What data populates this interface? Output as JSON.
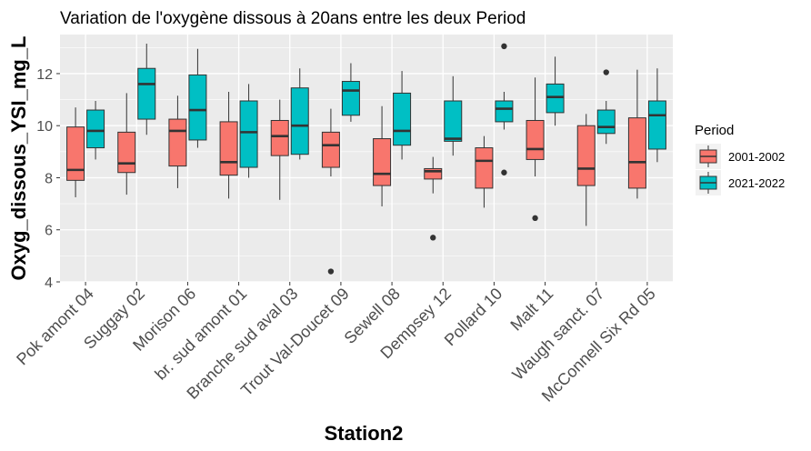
{
  "chart_data": {
    "type": "box",
    "title": "Variation  de l'oxygène dissous à 20ans entre les deux Period",
    "xlabel": "Station2",
    "ylabel": "Oxyg_dissous_YSI_mg_L",
    "ylim": [
      4,
      13.5
    ],
    "yticks": [
      4,
      6,
      8,
      10,
      12
    ],
    "grid": true,
    "legend": {
      "title": "Period",
      "position": "right"
    },
    "categories": [
      "Pok amont 04",
      "Suggay 02",
      "Morison 06",
      "br. sud amont 01",
      "Branche sud aval 03",
      "Trout Val-Doucet 09",
      "Sewell 08",
      "Dempsey 12",
      "Pollard 10",
      "Malt 11",
      "Waugh sanct. 07",
      "McConnell Six Rd 05"
    ],
    "series": [
      {
        "name": "2001-2002",
        "color": "#F8766D",
        "boxes": [
          {
            "min": 7.25,
            "q1": 7.9,
            "median": 8.3,
            "q3": 9.95,
            "max": 10.7,
            "outliers": []
          },
          {
            "min": 7.35,
            "q1": 8.2,
            "median": 8.55,
            "q3": 9.75,
            "max": 11.25,
            "outliers": []
          },
          {
            "min": 7.6,
            "q1": 8.45,
            "median": 9.8,
            "q3": 10.25,
            "max": 11.15,
            "outliers": []
          },
          {
            "min": 7.2,
            "q1": 8.1,
            "median": 8.6,
            "q3": 10.15,
            "max": 11.3,
            "outliers": []
          },
          {
            "min": 7.15,
            "q1": 8.85,
            "median": 9.6,
            "q3": 10.2,
            "max": 11.0,
            "outliers": []
          },
          {
            "min": 8.05,
            "q1": 8.4,
            "median": 9.25,
            "q3": 9.75,
            "max": 10.65,
            "outliers": [
              4.4
            ]
          },
          {
            "min": 6.9,
            "q1": 7.7,
            "median": 8.15,
            "q3": 9.5,
            "max": 10.75,
            "outliers": []
          },
          {
            "min": 7.4,
            "q1": 7.95,
            "median": 8.25,
            "q3": 8.35,
            "max": 8.8,
            "outliers": [
              5.7
            ]
          },
          {
            "min": 6.85,
            "q1": 7.6,
            "median": 8.65,
            "q3": 9.15,
            "max": 9.6,
            "outliers": []
          },
          {
            "min": 8.05,
            "q1": 8.7,
            "median": 9.1,
            "q3": 10.2,
            "max": 11.85,
            "outliers": [
              6.45
            ]
          },
          {
            "min": 6.15,
            "q1": 7.7,
            "median": 8.35,
            "q3": 10.0,
            "max": 10.45,
            "outliers": []
          },
          {
            "min": 7.2,
            "q1": 7.6,
            "median": 8.6,
            "q3": 10.3,
            "max": 12.15,
            "outliers": []
          }
        ]
      },
      {
        "name": "2021-2022",
        "color": "#00BFC4",
        "boxes": [
          {
            "min": 8.7,
            "q1": 9.15,
            "median": 9.8,
            "q3": 10.6,
            "max": 10.95,
            "outliers": []
          },
          {
            "min": 9.65,
            "q1": 10.25,
            "median": 11.6,
            "q3": 12.2,
            "max": 13.15,
            "outliers": []
          },
          {
            "min": 9.15,
            "q1": 9.45,
            "median": 10.6,
            "q3": 11.95,
            "max": 12.95,
            "outliers": []
          },
          {
            "min": 8.0,
            "q1": 8.4,
            "median": 9.75,
            "q3": 10.95,
            "max": 11.6,
            "outliers": []
          },
          {
            "min": 8.7,
            "q1": 8.9,
            "median": 10.0,
            "q3": 11.45,
            "max": 12.2,
            "outliers": []
          },
          {
            "min": 10.15,
            "q1": 10.4,
            "median": 11.35,
            "q3": 11.7,
            "max": 12.4,
            "outliers": []
          },
          {
            "min": 8.7,
            "q1": 9.25,
            "median": 9.8,
            "q3": 11.25,
            "max": 12.1,
            "outliers": []
          },
          {
            "min": 8.85,
            "q1": 9.4,
            "median": 9.5,
            "q3": 10.95,
            "max": 11.9,
            "outliers": []
          },
          {
            "min": 9.85,
            "q1": 10.15,
            "median": 10.65,
            "q3": 10.95,
            "max": 11.3,
            "outliers": [
              13.05,
              8.2
            ]
          },
          {
            "min": 10.0,
            "q1": 10.5,
            "median": 11.1,
            "q3": 11.6,
            "max": 12.65,
            "outliers": []
          },
          {
            "min": 9.3,
            "q1": 9.7,
            "median": 9.95,
            "q3": 10.6,
            "max": 10.95,
            "outliers": [
              12.05
            ]
          },
          {
            "min": 8.6,
            "q1": 9.1,
            "median": 10.4,
            "q3": 10.95,
            "max": 12.2,
            "outliers": []
          }
        ]
      }
    ]
  }
}
